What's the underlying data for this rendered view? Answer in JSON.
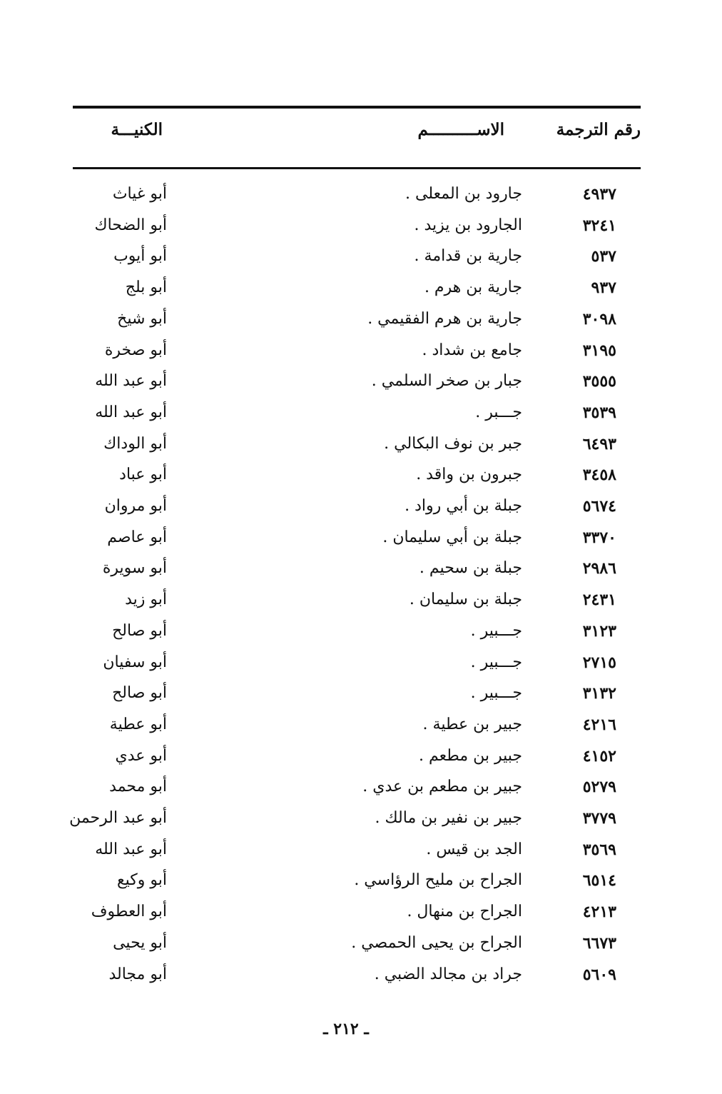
{
  "header": {
    "number_label": "رقم الترجمة",
    "name_label": "الاســــــــــم",
    "kunya_label": "الكنيـــة"
  },
  "rows": [
    {
      "number": "٤٩٣٧",
      "name": "جارود بن المعلى .",
      "kunya": "أبو غياث"
    },
    {
      "number": "٣٢٤١",
      "name": "الجارود بن يزيد .",
      "kunya": "أبو الضحاك"
    },
    {
      "number": "٥٣٧",
      "name": "جارية بن قدامة .",
      "kunya": "أبو أيوب"
    },
    {
      "number": "٩٣٧",
      "name": "جارية بن هرم .",
      "kunya": "أبو بلج"
    },
    {
      "number": "٣٠٩٨",
      "name": "جارية بن هرم الفقيمي .",
      "kunya": "أبو شيخ"
    },
    {
      "number": "٣١٩٥",
      "name": "جامع بن شداد .",
      "kunya": "أبو صخرة"
    },
    {
      "number": "٣٥٥٥",
      "name": "جبار بن صخر السلمي .",
      "kunya": "أبو عبد الله"
    },
    {
      "number": "٣٥٣٩",
      "name": "جـــبر .",
      "kunya": "أبو عبد الله"
    },
    {
      "number": "٦٤٩٣",
      "name": "جبر بن نوف البكالي .",
      "kunya": "أبو الوداك"
    },
    {
      "number": "٣٤٥٨",
      "name": "جبرون بن واقد .",
      "kunya": "أبو عباد"
    },
    {
      "number": "٥٦٧٤",
      "name": "جبلة بن أبي رواد .",
      "kunya": "أبو مروان"
    },
    {
      "number": "٣٣٧٠",
      "name": "جبلة بن أبي سليمان .",
      "kunya": "أبو عاصم"
    },
    {
      "number": "٢٩٨٦",
      "name": "جبلة بن سحيم .",
      "kunya": "أبو سويرة"
    },
    {
      "number": "٢٤٣١",
      "name": "جبلة بن سليمان .",
      "kunya": "أبو زيد"
    },
    {
      "number": "٣١٢٣",
      "name": "جـــبير .",
      "kunya": "أبو صالح"
    },
    {
      "number": "٢٧١٥",
      "name": "جـــبير .",
      "kunya": "أبو سفيان"
    },
    {
      "number": "٣١٣٢",
      "name": "جـــبير .",
      "kunya": "أبو صالح"
    },
    {
      "number": "٤٢١٦",
      "name": "جبير بن عطية .",
      "kunya": "أبو عطية"
    },
    {
      "number": "٤١٥٢",
      "name": "جبير بن مطعم .",
      "kunya": "أبو عدي"
    },
    {
      "number": "٥٢٧٩",
      "name": "جبير بن مطعم بن عدي .",
      "kunya": "أبو محمد"
    },
    {
      "number": "٣٧٧٩",
      "name": "جبير بن نفير بن مالك .",
      "kunya": "أبو عبد الرحمن"
    },
    {
      "number": "٣٥٦٩",
      "name": "الجد بن قيس .",
      "kunya": "أبو عبد الله"
    },
    {
      "number": "٦٥١٤",
      "name": "الجراح بن مليح الرؤاسي .",
      "kunya": "أبو وكيع"
    },
    {
      "number": "٤٢١٣",
      "name": "الجراح بن منهال .",
      "kunya": "أبو العطوف"
    },
    {
      "number": "٦٦٧٣",
      "name": "الجراح بن يحيى الحمصي .",
      "kunya": "أبو يحيى"
    },
    {
      "number": "٥٦٠٩",
      "name": "جراد بن مجالد الضبي .",
      "kunya": "أبو مجالد"
    }
  ],
  "page_number": "ـ ٢١٢ ـ"
}
